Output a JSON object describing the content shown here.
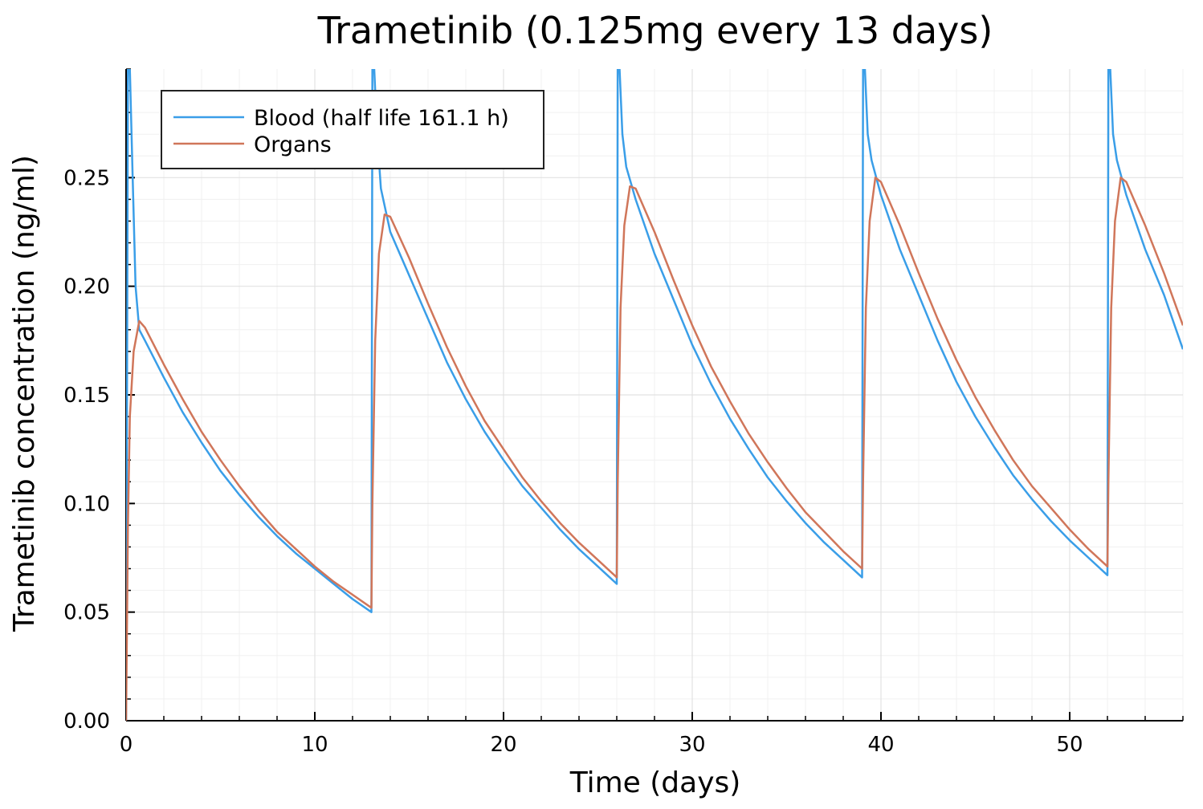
{
  "chart_data": {
    "type": "line",
    "title": "Trametinib  (0.125mg every 13 days)",
    "xlabel": "Time (days)",
    "ylabel": "Trametinib concentration (ng/ml)",
    "xlim": [
      0,
      56
    ],
    "ylim": [
      0,
      0.3
    ],
    "xticks": [
      0,
      10,
      20,
      30,
      40,
      50
    ],
    "xtick_labels": [
      "0",
      "10",
      "20",
      "30",
      "40",
      "50"
    ],
    "yticks": [
      0,
      0.05,
      0.1,
      0.15,
      0.2,
      0.25
    ],
    "ytick_labels": [
      "0.00",
      "0.05",
      "0.10",
      "0.15",
      "0.20",
      "0.25"
    ],
    "grid": true,
    "legend_position": "top-left",
    "dose_interval_days": 13,
    "series": [
      {
        "name": "Blood (half life 161.1 h)",
        "color": "#3a9ee8",
        "x": [
          0,
          0.1,
          0.2,
          0.35,
          0.5,
          0.7,
          1,
          2,
          3,
          4,
          5,
          6,
          7,
          8,
          9,
          10,
          11,
          12,
          13,
          13.05,
          13.15,
          13.3,
          13.5,
          14,
          15,
          16,
          17,
          18,
          19,
          20,
          21,
          22,
          23,
          24,
          25,
          26,
          26.05,
          26.15,
          26.3,
          26.5,
          27,
          28,
          29,
          30,
          31,
          32,
          33,
          34,
          35,
          36,
          37,
          38,
          39,
          39.05,
          39.15,
          39.3,
          39.5,
          40,
          41,
          42,
          43,
          44,
          45,
          46,
          47,
          48,
          49,
          50,
          51,
          52,
          52.05,
          52.15,
          52.3,
          52.5,
          53,
          54,
          55,
          56
        ],
        "y": [
          0,
          0.3,
          0.3,
          0.25,
          0.2,
          0.18,
          0.175,
          0.158,
          0.142,
          0.128,
          0.115,
          0.104,
          0.094,
          0.085,
          0.077,
          0.07,
          0.063,
          0.056,
          0.05,
          0.3,
          0.3,
          0.27,
          0.245,
          0.225,
          0.205,
          0.185,
          0.165,
          0.148,
          0.133,
          0.12,
          0.108,
          0.098,
          0.088,
          0.079,
          0.071,
          0.063,
          0.3,
          0.3,
          0.27,
          0.255,
          0.24,
          0.215,
          0.194,
          0.173,
          0.155,
          0.139,
          0.125,
          0.112,
          0.101,
          0.091,
          0.082,
          0.074,
          0.066,
          0.3,
          0.3,
          0.27,
          0.258,
          0.242,
          0.217,
          0.196,
          0.175,
          0.156,
          0.14,
          0.126,
          0.113,
          0.102,
          0.092,
          0.083,
          0.075,
          0.067,
          0.3,
          0.3,
          0.27,
          0.258,
          0.242,
          0.217,
          0.196,
          0.171
        ]
      },
      {
        "name": "Organs",
        "color": "#d0765a",
        "x": [
          0,
          0.1,
          0.2,
          0.4,
          0.7,
          1,
          2,
          3,
          4,
          5,
          6,
          7,
          8,
          9,
          10,
          11,
          12,
          13,
          13.05,
          13.2,
          13.4,
          13.7,
          14,
          15,
          16,
          17,
          18,
          19,
          20,
          21,
          22,
          23,
          24,
          25,
          26,
          26.05,
          26.2,
          26.4,
          26.7,
          27,
          28,
          29,
          30,
          31,
          32,
          33,
          34,
          35,
          36,
          37,
          38,
          39,
          39.05,
          39.2,
          39.4,
          39.7,
          40,
          41,
          42,
          43,
          44,
          45,
          46,
          47,
          48,
          49,
          50,
          51,
          52,
          52.05,
          52.2,
          52.4,
          52.7,
          53,
          54,
          55,
          56
        ],
        "y": [
          0,
          0.09,
          0.14,
          0.17,
          0.184,
          0.181,
          0.164,
          0.148,
          0.133,
          0.12,
          0.108,
          0.097,
          0.087,
          0.079,
          0.071,
          0.064,
          0.058,
          0.052,
          0.1,
          0.175,
          0.215,
          0.233,
          0.232,
          0.213,
          0.192,
          0.172,
          0.154,
          0.138,
          0.125,
          0.112,
          0.101,
          0.091,
          0.082,
          0.074,
          0.066,
          0.11,
          0.19,
          0.228,
          0.246,
          0.245,
          0.225,
          0.203,
          0.182,
          0.163,
          0.147,
          0.132,
          0.119,
          0.107,
          0.096,
          0.087,
          0.078,
          0.07,
          0.11,
          0.19,
          0.23,
          0.25,
          0.248,
          0.228,
          0.206,
          0.185,
          0.166,
          0.149,
          0.134,
          0.12,
          0.108,
          0.098,
          0.088,
          0.079,
          0.071,
          0.11,
          0.19,
          0.23,
          0.25,
          0.248,
          0.228,
          0.206,
          0.182
        ]
      }
    ]
  }
}
